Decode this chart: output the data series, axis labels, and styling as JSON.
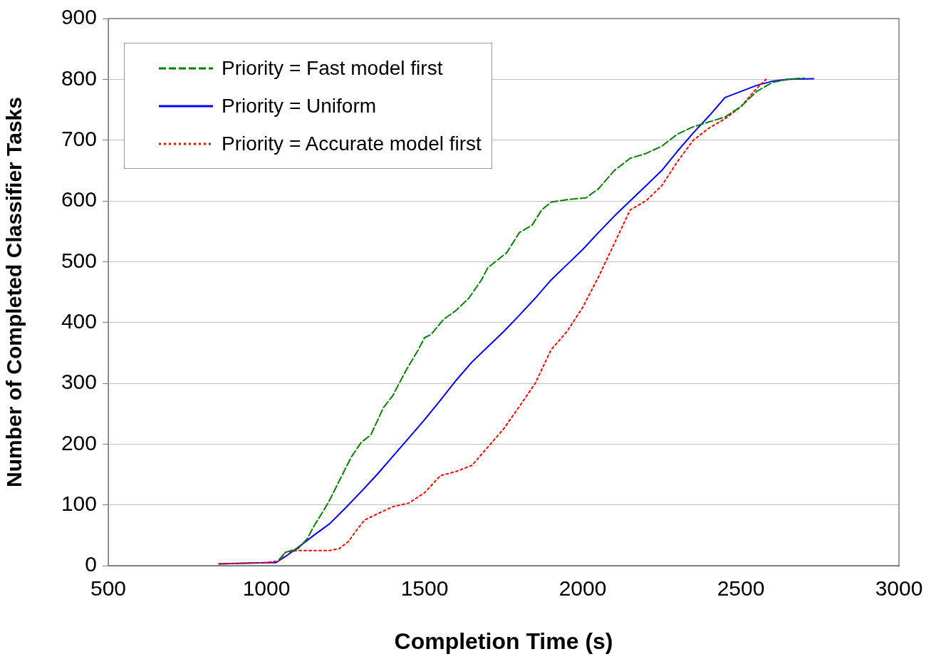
{
  "chart_data": {
    "type": "line",
    "xlabel": "Completion Time (s)",
    "ylabel": "Number of Completed Classifier Tasks",
    "xlim": [
      500,
      3000
    ],
    "xticks": [
      500,
      1000,
      1500,
      2000,
      2500,
      3000
    ],
    "ylim": [
      0,
      900
    ],
    "yticks": [
      0,
      100,
      200,
      300,
      400,
      500,
      600,
      700,
      800,
      900
    ],
    "grid": "y",
    "legend": "top left",
    "marker": "none",
    "series": [
      {
        "name": "Priority = Fast model first",
        "color": "#008000",
        "line_style": "dashed",
        "x": [
          1040,
          1060,
          1100,
          1130,
          1150,
          1180,
          1200,
          1250,
          1270,
          1300,
          1330,
          1370,
          1400,
          1440,
          1480,
          1500,
          1520,
          1560,
          1600,
          1640,
          1680,
          1700,
          1760,
          1800,
          1840,
          1870,
          1900,
          1950,
          2010,
          2050,
          2100,
          2150,
          2200,
          2250,
          2300,
          2350,
          2400,
          2450,
          2500,
          2550,
          2600,
          2650,
          2700
        ],
        "values": [
          10,
          22,
          28,
          45,
          65,
          90,
          108,
          160,
          180,
          203,
          215,
          260,
          280,
          320,
          355,
          375,
          380,
          405,
          420,
          440,
          470,
          490,
          515,
          548,
          560,
          585,
          598,
          602,
          605,
          620,
          650,
          670,
          678,
          690,
          710,
          722,
          730,
          738,
          755,
          780,
          795,
          800,
          802
        ]
      },
      {
        "name": "Priority = Uniform",
        "color": "#0000ff",
        "line_style": "solid",
        "x": [
          850,
          1000,
          1030,
          1060,
          1100,
          1150,
          1200,
          1250,
          1300,
          1350,
          1400,
          1450,
          1500,
          1550,
          1600,
          1650,
          1700,
          1750,
          1800,
          1850,
          1900,
          1950,
          2000,
          2050,
          2100,
          2150,
          2200,
          2250,
          2300,
          2350,
          2400,
          2450,
          2500,
          2550,
          2600,
          2650,
          2730
        ],
        "values": [
          3,
          5,
          5,
          15,
          30,
          50,
          69,
          95,
          122,
          150,
          180,
          210,
          240,
          272,
          305,
          335,
          360,
          385,
          412,
          440,
          470,
          495,
          520,
          548,
          575,
          600,
          625,
          650,
          682,
          712,
          740,
          770,
          780,
          790,
          797,
          800,
          801
        ]
      },
      {
        "name": "Priority = Accurate model first",
        "color": "#ff0000",
        "line_style": "dotted",
        "x": [
          850,
          1000,
          1040,
          1060,
          1100,
          1150,
          1200,
          1230,
          1260,
          1280,
          1310,
          1350,
          1400,
          1450,
          1500,
          1550,
          1600,
          1650,
          1700,
          1750,
          1800,
          1850,
          1900,
          1950,
          2000,
          2050,
          2100,
          2150,
          2200,
          2250,
          2300,
          2350,
          2400,
          2450,
          2500,
          2550,
          2580
        ],
        "values": [
          3,
          5,
          8,
          22,
          25,
          25,
          25,
          28,
          40,
          55,
          75,
          85,
          97,
          103,
          120,
          148,
          155,
          165,
          195,
          225,
          262,
          300,
          355,
          385,
          425,
          475,
          530,
          585,
          600,
          625,
          665,
          700,
          720,
          735,
          755,
          785,
          800
        ]
      }
    ]
  }
}
